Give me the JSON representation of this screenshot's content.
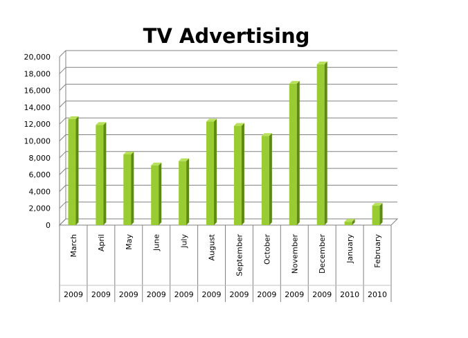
{
  "chart_data": {
    "type": "bar",
    "title": "TV Advertising",
    "xlabel": "",
    "ylabel": "",
    "ylim": [
      0,
      20000
    ],
    "yticks": [
      "0",
      "2,000",
      "4,000",
      "6,000",
      "8,000",
      "10,000",
      "12,000",
      "14,000",
      "16,000",
      "18,000",
      "20,000"
    ],
    "grid": true,
    "legend": "none",
    "style": "3d-column",
    "colors": {
      "bar_front": "#99cc33",
      "bar_side": "#5c8a14",
      "bar_top": "#b8e05a",
      "grid": "#808080"
    },
    "categories": [
      {
        "month": "March",
        "year": "2009"
      },
      {
        "month": "April",
        "year": "2009"
      },
      {
        "month": "May",
        "year": "2009"
      },
      {
        "month": "June",
        "year": "2009"
      },
      {
        "month": "July",
        "year": "2009"
      },
      {
        "month": "August",
        "year": "2009"
      },
      {
        "month": "September",
        "year": "2009"
      },
      {
        "month": "October",
        "year": "2009"
      },
      {
        "month": "November",
        "year": "2009"
      },
      {
        "month": "December",
        "year": "2009"
      },
      {
        "month": "January",
        "year": "2010"
      },
      {
        "month": "February",
        "year": "2010"
      }
    ],
    "values": [
      12600,
      11900,
      8400,
      7100,
      7600,
      12300,
      11800,
      10600,
      16800,
      19100,
      400,
      2300
    ]
  }
}
